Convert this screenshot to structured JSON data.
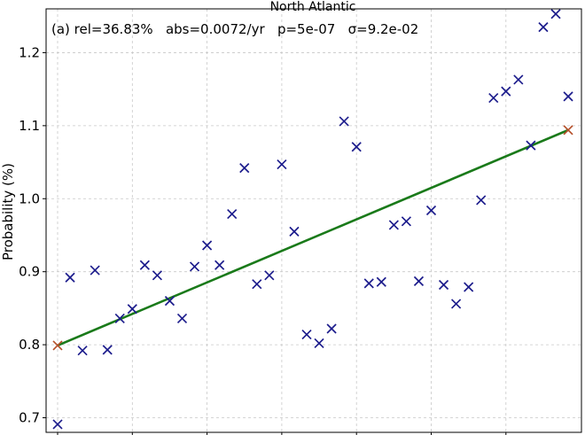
{
  "chart_data": {
    "type": "scatter",
    "title": "North Atlantic",
    "annotation": "(a) rel=36.83%   abs=0.0072/yr   p=5e-07   σ=9.2e-02",
    "xlabel": "",
    "ylabel": "Probability (%)",
    "ylim": [
      0.68,
      1.26
    ],
    "yticks": [
      "0.7",
      "0.8",
      "0.9",
      "1.0",
      "1.1",
      "1.2"
    ],
    "grid": true,
    "colors": {
      "points": "#1c1c8c",
      "trend": "#1a7a1a",
      "endpoints": "#b5502a"
    },
    "series": [
      {
        "values": [
          0.691,
          0.892,
          0.792,
          0.902,
          0.793,
          0.836,
          0.849,
          0.909,
          0.895,
          0.86,
          0.836,
          0.907,
          0.936,
          0.909,
          0.979,
          1.042,
          0.883,
          0.895,
          1.047,
          0.955,
          0.814,
          0.802,
          0.822,
          1.106,
          1.071,
          0.884,
          0.886,
          0.964,
          0.969,
          0.887,
          0.984,
          0.882,
          0.856,
          0.879,
          0.998,
          1.138,
          1.147,
          1.163,
          1.073,
          1.235,
          1.253,
          1.14
        ]
      }
    ],
    "trend": {
      "start": 0.799,
      "end": 1.094
    }
  }
}
